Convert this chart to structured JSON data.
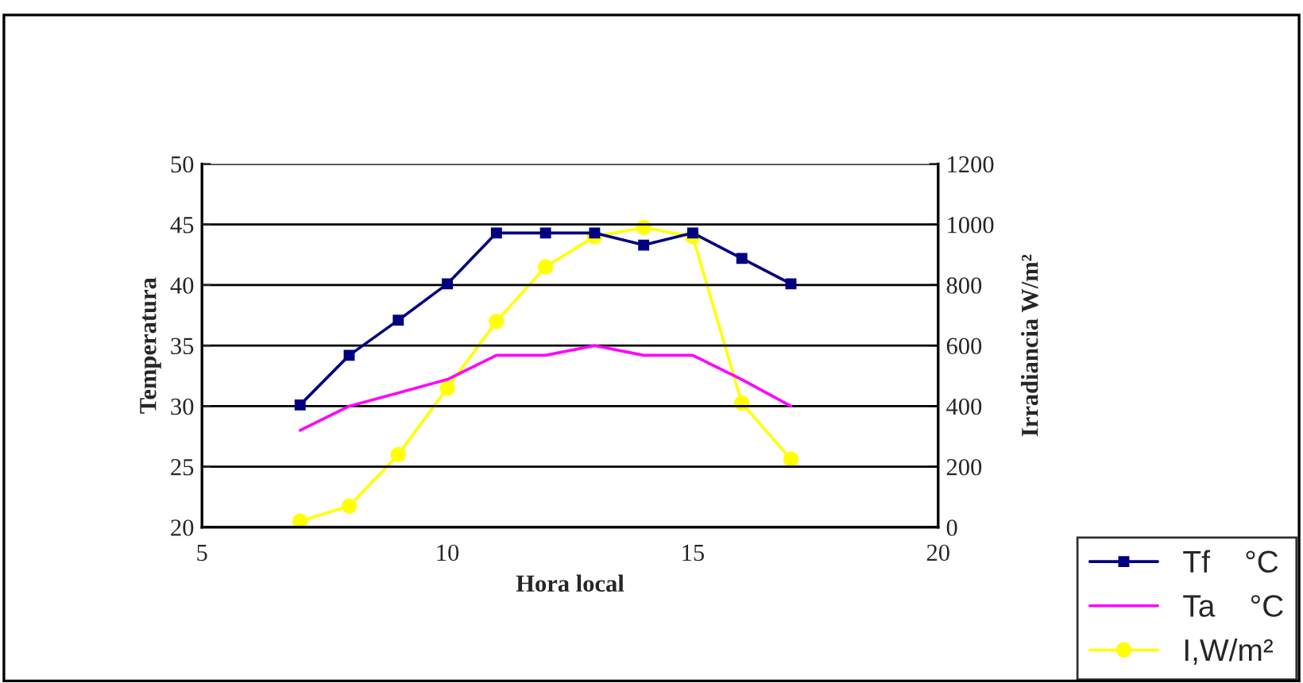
{
  "chart_data": {
    "type": "line",
    "xlabel": "Hora local",
    "ylabel": "Temperatura",
    "y2label": "Irradiancia W/m²",
    "x": [
      7,
      8,
      9,
      10,
      11,
      12,
      13,
      14,
      15,
      16,
      17
    ],
    "series": [
      {
        "name": "Tf    °C",
        "color": "#000080",
        "marker": "square",
        "values": [
          30.1,
          34.2,
          37.1,
          40.1,
          44.3,
          44.3,
          44.3,
          43.3,
          44.3,
          42.2,
          40.1
        ]
      },
      {
        "name": "Ta    °C",
        "color": "#ff00ff",
        "marker": "none",
        "values": [
          28,
          30,
          31.1,
          32.2,
          34.2,
          34.2,
          35,
          34.2,
          34.2,
          32.2,
          30
        ]
      },
      {
        "name": "I,W/m²",
        "color": "#ffff00",
        "marker": "circle",
        "axis": "y2",
        "values": [
          20,
          70,
          240,
          460,
          680,
          860,
          960,
          990,
          960,
          410,
          225
        ]
      }
    ],
    "xlim": [
      5,
      20
    ],
    "xticks": [
      5,
      10,
      15,
      20
    ],
    "ylim": [
      20,
      50
    ],
    "yticks": [
      20,
      25,
      30,
      35,
      40,
      45,
      50
    ],
    "y2lim": [
      0,
      1200
    ],
    "y2ticks": [
      0,
      200,
      400,
      600,
      800,
      1000,
      1200
    ],
    "grid": "y",
    "legend": "bottom right",
    "line_style": "solid"
  }
}
